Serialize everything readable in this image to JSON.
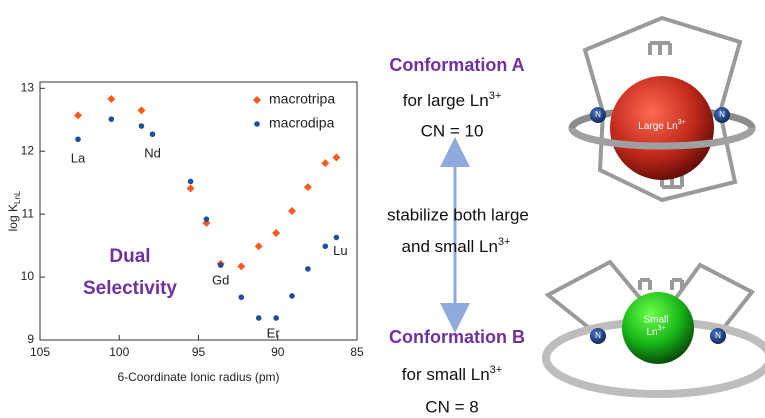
{
  "chart_data": {
    "type": "scatter",
    "x_label": "6-Coordinate Ionic radius (pm)",
    "y_label": "log K",
    "y_label_sub": "LnL",
    "xlim": [
      105,
      85
    ],
    "ylim": [
      9,
      13.1
    ],
    "xticks": [
      105,
      100,
      95,
      90,
      85
    ],
    "yticks": [
      9,
      10,
      11,
      12,
      13
    ],
    "legend": "upper right",
    "series": [
      {
        "name": "macrotripa",
        "color": "#ff5a1e",
        "marker": "diamond",
        "x": [
          102.6,
          100.5,
          98.6,
          95.5,
          94.5,
          93.6,
          92.3,
          91.2,
          90.1,
          89.1,
          88.1,
          87.0,
          86.3
        ],
        "values": [
          12.57,
          12.83,
          12.65,
          11.41,
          10.86,
          10.21,
          10.17,
          10.49,
          10.7,
          11.05,
          11.43,
          11.81,
          11.9
        ]
      },
      {
        "name": "macrodipa",
        "color": "#1f4e9c",
        "marker": "circle",
        "x": [
          102.6,
          100.5,
          98.6,
          97.9,
          95.5,
          94.5,
          93.6,
          92.3,
          91.2,
          90.1,
          89.1,
          88.1,
          87.0,
          86.3
        ],
        "values": [
          12.19,
          12.51,
          12.4,
          12.27,
          11.52,
          10.92,
          10.19,
          9.68,
          9.35,
          9.35,
          9.7,
          10.13,
          10.49,
          10.63
        ]
      }
    ],
    "annotations": [
      "La",
      "Nd",
      "Gd",
      "Er",
      "Lu"
    ],
    "callout": [
      "Dual",
      "Selectivity"
    ]
  },
  "diagram": {
    "conformation_a": {
      "title": "Conformation A",
      "line1": "for large Ln",
      "line1_sup": "3+",
      "line2": "CN = 10"
    },
    "middle": {
      "line1": "stabilize both large",
      "line2": "and small Ln",
      "line2_sup": "3+"
    },
    "conformation_b": {
      "title": "Conformation B",
      "line1": "for small Ln",
      "line1_sup": "3+",
      "line2": "CN = 8"
    },
    "large_ion": {
      "label": "Large Ln",
      "sup": "3+"
    },
    "small_ion": {
      "label": "Small",
      "label2": "Ln",
      "sup": "3+"
    },
    "nitrogen": [
      "N",
      "N",
      "N",
      "N"
    ]
  }
}
